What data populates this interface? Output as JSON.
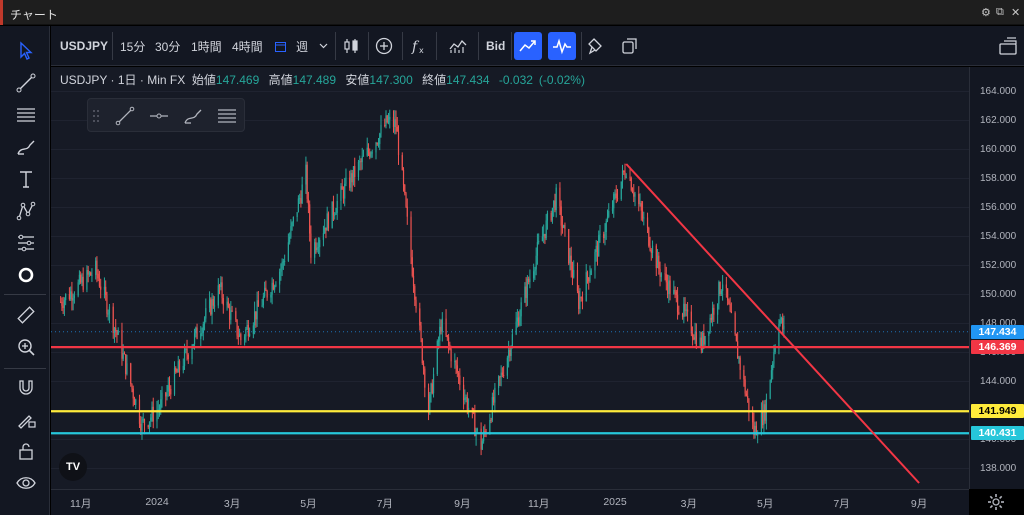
{
  "window": {
    "title": "チャート",
    "controls": [
      "⚙",
      "⧉",
      "✕"
    ]
  },
  "toolbar": {
    "symbol": "USDJPY",
    "intervals": [
      "15分",
      "30分",
      "1時間",
      "4時間"
    ],
    "interval_type_icon": "calendar-icon",
    "period": "週",
    "dropdown_icon": "chevron-down-icon",
    "price_mode": "Bid"
  },
  "legend": {
    "symbol": "USDJPY",
    "timeframe": "1日",
    "source": "Min FX",
    "open_label": "始値",
    "open": "147.469",
    "high_label": "高値",
    "high": "147.489",
    "low_label": "安値",
    "low": "147.300",
    "close_label": "終値",
    "close": "147.434",
    "change": "-0.032",
    "change_pct": "(-0.02%)"
  },
  "chart_data": {
    "type": "candlestick",
    "ylim": [
      137,
      165
    ],
    "y_ticks": [
      "138.000",
      "140.000",
      "142.000",
      "144.000",
      "146.000",
      "148.000",
      "150.000",
      "152.000",
      "154.000",
      "156.000",
      "158.000",
      "160.000",
      "162.000",
      "164.000"
    ],
    "x_ticks": [
      "11月",
      "2024",
      "3月",
      "5月",
      "7月",
      "9月",
      "11月",
      "2025",
      "3月",
      "5月",
      "7月",
      "9月"
    ],
    "price_path": [
      [
        "2023-10-16",
        149.5
      ],
      [
        "2023-11-13",
        151.7
      ],
      [
        "2023-12-01",
        147.0
      ],
      [
        "2023-12-20",
        141.0
      ],
      [
        "2024-01-03",
        142.2
      ],
      [
        "2024-02-20",
        150.4
      ],
      [
        "2024-03-08",
        146.9
      ],
      [
        "2024-04-10",
        152.0
      ],
      [
        "2024-04-29",
        158.3
      ],
      [
        "2024-05-03",
        153.0
      ],
      [
        "2024-05-28",
        157.0
      ],
      [
        "2024-07-03",
        161.9
      ],
      [
        "2024-07-10",
        161.7
      ],
      [
        "2024-08-05",
        142.0
      ],
      [
        "2024-08-15",
        148.0
      ],
      [
        "2024-09-16",
        139.6
      ],
      [
        "2024-10-31",
        153.0
      ],
      [
        "2024-11-15",
        156.7
      ],
      [
        "2024-12-03",
        149.5
      ],
      [
        "2025-01-10",
        158.8
      ],
      [
        "2025-02-05",
        151.8
      ],
      [
        "2025-03-11",
        146.5
      ],
      [
        "2025-03-28",
        151.0
      ],
      [
        "2025-04-22",
        140.5
      ],
      [
        "2025-05-01",
        142.0
      ],
      [
        "2025-05-12",
        148.5
      ],
      [
        "2025-05-16",
        147.4
      ]
    ],
    "horizontal_lines": [
      {
        "price": 146.369,
        "label": "146.369",
        "color": "#f23645"
      },
      {
        "price": 141.949,
        "label": "141.949",
        "color": "#ffeb3b"
      },
      {
        "price": 140.431,
        "label": "140.431",
        "color": "#26c6da"
      }
    ],
    "last_price": {
      "price": 147.434,
      "label": "147.434",
      "color": "#2196f3"
    },
    "trend_line": {
      "from": [
        "2025-01-10",
        159.0
      ],
      "to": [
        "2025-09-01",
        137.0
      ],
      "color": "#f23645"
    },
    "up_color": "#26a69a",
    "down_color": "#ef5350"
  }
}
